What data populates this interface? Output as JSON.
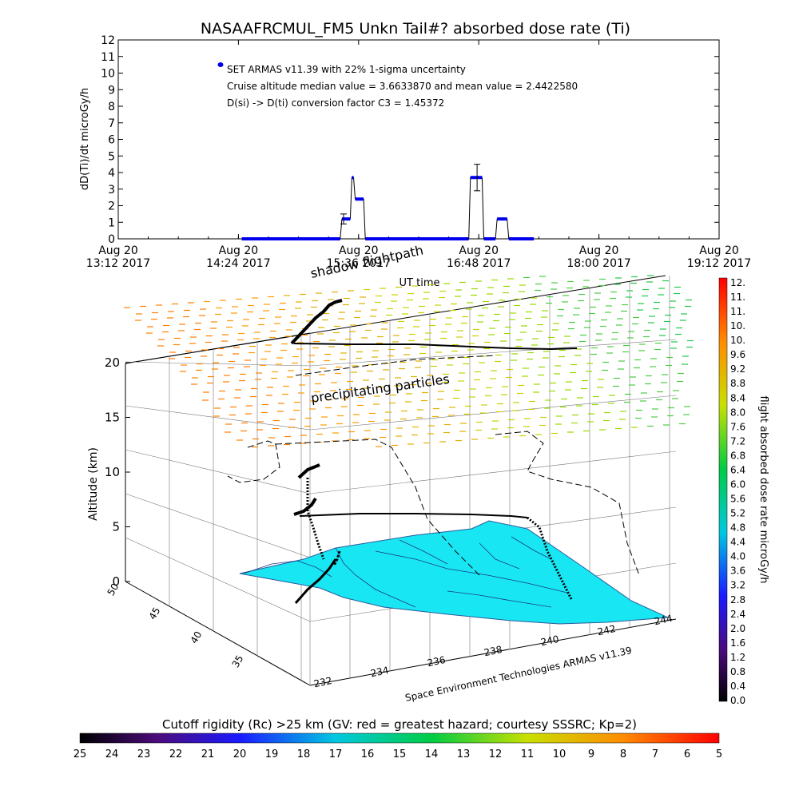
{
  "chart_data": [
    {
      "type": "line",
      "title": "NASAAFRCMUL_FM5 Unkn Tail#? absorbed dose rate (Ti)",
      "ylabel": "dD(Ti)/dt microGy/h",
      "xlabel": "UT time",
      "ylim": [
        0,
        12
      ],
      "y_ticks": [
        "0",
        "1",
        "2",
        "3",
        "4",
        "5",
        "6",
        "7",
        "8",
        "9",
        "10",
        "11",
        "12"
      ],
      "x_tick_labels": [
        [
          "Aug 20",
          "13:12 2017"
        ],
        [
          "Aug 20",
          "14:24 2017"
        ],
        [
          "Aug 20",
          "15:36 2017"
        ],
        [
          "Aug 20",
          "16:48 2017"
        ],
        [
          "Aug 20",
          "18:00 2017"
        ],
        [
          "Aug 20",
          "19:12 2017"
        ]
      ],
      "x_range_min": [
        792,
        1152
      ],
      "annotations": [
        "SET ARMAS v11.39 with 22% 1-sigma uncertainty",
        "Cruise altitude median value = 3.6633870 and mean value = 2.4422580",
        "D(si) -> D(ti) conversion factor C3 = 1.45372"
      ],
      "legend_marker_color": "#0000ee",
      "series": [
        {
          "color": "#0000ee",
          "points_min": [
            [
              866,
              0
            ],
            [
              925,
              0
            ],
            [
              926,
              1.2
            ],
            [
              931,
              1.2
            ],
            [
              932,
              3.7
            ],
            [
              933,
              3.7
            ],
            [
              934,
              2.4
            ],
            [
              939,
              2.4
            ],
            [
              940,
              0
            ],
            [
              1002,
              0
            ],
            [
              1003,
              3.7
            ],
            [
              1010,
              3.7
            ],
            [
              1011,
              0
            ],
            [
              1018,
              0
            ],
            [
              1019,
              1.2
            ],
            [
              1025,
              1.2
            ],
            [
              1026,
              0
            ],
            [
              1041,
              0
            ]
          ],
          "error_bars": [
            [
              927,
              1.2,
              0.3
            ],
            [
              1007,
              3.7,
              0.8
            ]
          ]
        }
      ]
    },
    {
      "type": "scatter",
      "subtype": "3d-flight-track",
      "zlabel": "Altitude (km)",
      "z_ticks": [
        "0",
        "5",
        "10",
        "15",
        "20"
      ],
      "lat_ticks": [
        "35",
        "40",
        "45",
        "50"
      ],
      "lon_ticks": [
        "232",
        "234",
        "236",
        "238",
        "240",
        "242",
        "244"
      ],
      "labels": [
        "shadow flightpath",
        "precipitating particles"
      ],
      "credit": "Space Environment Technologies ARMAS v11.39",
      "colorbar_label": "flight absorbed dose rate microGy/h",
      "colorbar_ticks": [
        "0.0",
        "0.4",
        "0.8",
        "1.2",
        "1.6",
        "2.0",
        "2.4",
        "2.8",
        "3.2",
        "3.6",
        "4.0",
        "4.4",
        "4.8",
        "5.2",
        "5.6",
        "6.0",
        "6.4",
        "6.8",
        "7.2",
        "7.6",
        "8.0",
        "8.4",
        "8.8",
        "9.2",
        "9.6",
        "10.",
        "10.",
        "11.",
        "11.",
        "12."
      ]
    },
    {
      "type": "heatmap",
      "subtype": "colorbar",
      "title": "Cutoff rigidity (Rc) >25 km (GV: red = greatest hazard; courtesy SSSRC; Kp=2)",
      "ticks": [
        "25",
        "24",
        "23",
        "22",
        "21",
        "20",
        "19",
        "18",
        "17",
        "16",
        "15",
        "14",
        "13",
        "12",
        "11",
        "10",
        "9",
        "8",
        "7",
        "6",
        "5"
      ]
    }
  ]
}
